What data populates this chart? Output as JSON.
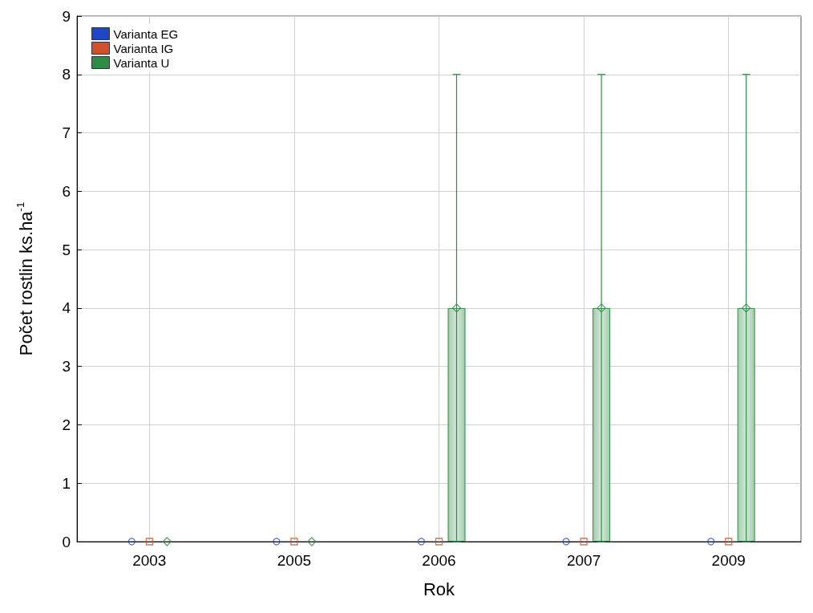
{
  "chart_data": {
    "type": "bar",
    "xlabel": "Rok",
    "ylabel": "Počet rostlin ks.ha$^{-1}$",
    "categories": [
      "2003",
      "2005",
      "2006",
      "2007",
      "2009"
    ],
    "series": [
      {
        "name": "Varianta EG",
        "color": "#2046c8",
        "values": [
          0,
          0,
          0,
          0,
          0
        ]
      },
      {
        "name": "Varianta IG",
        "color": "#d0502a",
        "values": [
          0,
          0,
          0,
          0,
          0
        ]
      },
      {
        "name": "Varianta U",
        "color": "#2e8b45",
        "values": [
          0,
          0,
          4,
          4,
          4
        ],
        "errors": [
          null,
          null,
          4,
          4,
          4
        ]
      },
      {
        "type": "scatter",
        "marker": "circle",
        "color": "#2046c8",
        "values": [
          0,
          0,
          0,
          0,
          0
        ]
      },
      {
        "type": "scatter",
        "marker": "square",
        "color": "#d0502a",
        "values": [
          0,
          0,
          0,
          0,
          0
        ]
      },
      {
        "type": "scatter",
        "marker": "diamond",
        "color": "#2e8b45",
        "values": [
          0,
          0,
          4,
          4,
          4
        ]
      }
    ],
    "ylim": [
      0,
      9
    ],
    "yticks": [
      0,
      1,
      2,
      3,
      4,
      5,
      6,
      7,
      8,
      9
    ],
    "grid": true,
    "legend": "top left"
  }
}
